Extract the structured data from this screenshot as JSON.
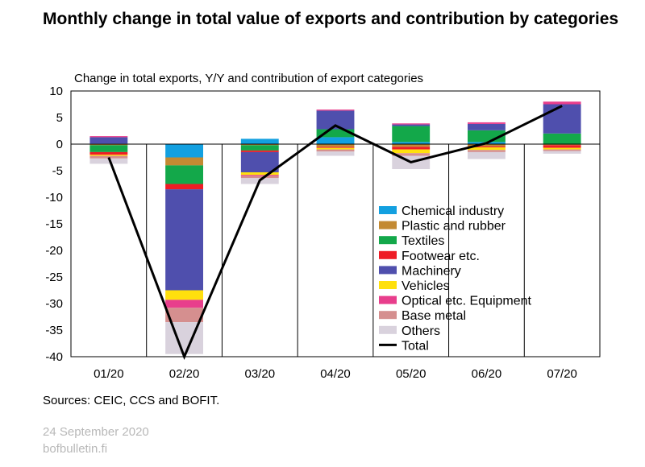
{
  "title": "Monthly change in total value of exports and contribution by categories",
  "subtitle": "Change in total exports, Y/Y and contribution of export categories",
  "source": "Sources: CEIC, CCS and BOFIT.",
  "footer": {
    "date": "24 September 2020",
    "site": "bofbulletin.fi"
  },
  "chart_data": {
    "type": "bar",
    "stacked": true,
    "categories": [
      "01/20",
      "02/20",
      "03/20",
      "04/20",
      "05/20",
      "06/20",
      "07/20"
    ],
    "ylim": [
      -40,
      10
    ],
    "yticks": [
      10,
      5,
      0,
      -5,
      -10,
      -15,
      -20,
      -25,
      -30,
      -35,
      -40
    ],
    "grid": false,
    "legend_position": "inside-lower-right",
    "series": [
      {
        "name": "Chemical industry",
        "color": "#13A0E0",
        "values": [
          0.1,
          -2.5,
          1.0,
          1.3,
          0.4,
          0.4,
          0.0
        ]
      },
      {
        "name": "Plastic and rubber",
        "color": "#C38A32",
        "values": [
          -0.2,
          -1.5,
          -0.2,
          -0.5,
          -0.5,
          -0.4,
          -0.2
        ]
      },
      {
        "name": "Textiles",
        "color": "#13A84A",
        "values": [
          -1.3,
          -3.5,
          -1.0,
          1.5,
          3.0,
          2.2,
          2.0
        ]
      },
      {
        "name": "Footwear etc.",
        "color": "#EE1C25",
        "values": [
          -0.5,
          -1.0,
          -0.3,
          -0.2,
          -0.5,
          -0.2,
          -0.5
        ]
      },
      {
        "name": "Machinery",
        "color": "#4F4FAD",
        "values": [
          1.2,
          -19.0,
          -3.8,
          3.5,
          0.3,
          1.2,
          5.5
        ]
      },
      {
        "name": "Vehicles",
        "color": "#FFE00D",
        "values": [
          -0.2,
          -1.8,
          -0.5,
          -0.3,
          -0.7,
          -0.5,
          -0.3
        ]
      },
      {
        "name": "Optical etc. Equipment",
        "color": "#E83E8C",
        "values": [
          0.2,
          -1.5,
          -0.2,
          0.2,
          0.2,
          0.3,
          0.5
        ]
      },
      {
        "name": "Base metal",
        "color": "#D58F8F",
        "values": [
          -0.5,
          -2.7,
          -0.4,
          -0.4,
          -0.5,
          -0.4,
          -0.3
        ]
      },
      {
        "name": "Others",
        "color": "#D9D2DD",
        "values": [
          -1.0,
          -6.0,
          -1.1,
          -0.8,
          -2.5,
          -1.3,
          -0.5
        ]
      }
    ],
    "line": {
      "name": "Total",
      "color": "#000000",
      "values": [
        -2.5,
        -40,
        -6.8,
        3.5,
        -3.4,
        0.2,
        7.2
      ]
    }
  }
}
